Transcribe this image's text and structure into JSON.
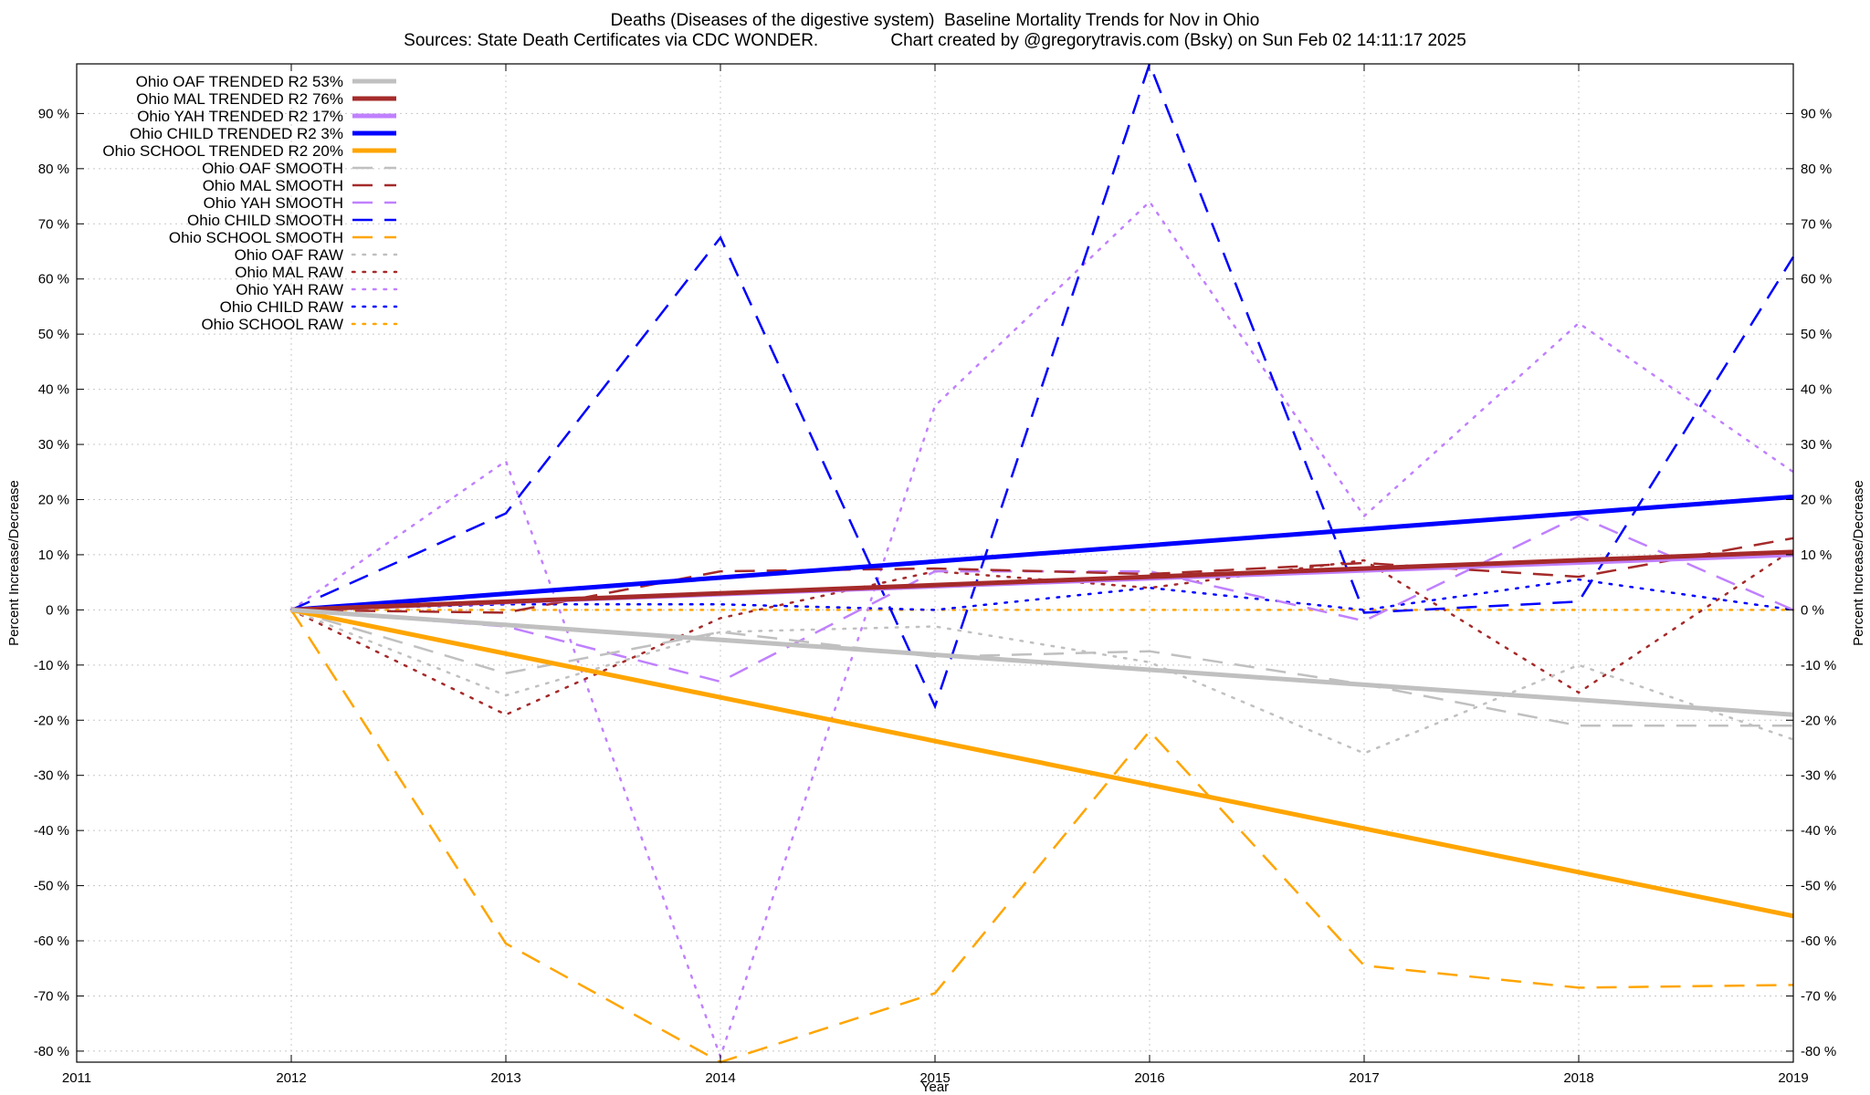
{
  "title": "Deaths (Diseases of the digestive system)  Baseline Mortality Trends for Nov in Ohio",
  "subtitle": "Sources: State Death Certificates via CDC WONDER.               Chart created by @gregorytravis.com (Bsky) on Sun Feb 02 14:11:17 2025",
  "chart_data": {
    "type": "line",
    "title": "Deaths (Diseases of the digestive system)  Baseline Mortality Trends for Nov in Ohio",
    "xlabel": "Year",
    "ylabel": "Percent Increase/Decrease",
    "y2label": "Percent Increase/Decrease",
    "xlim": [
      2011,
      2019
    ],
    "ylim": [
      -82,
      99
    ],
    "x_ticks": [
      2011,
      2012,
      2013,
      2014,
      2015,
      2016,
      2017,
      2018,
      2019
    ],
    "y_ticks": [
      -80,
      -70,
      -60,
      -50,
      -40,
      -30,
      -20,
      -10,
      0,
      10,
      20,
      30,
      40,
      50,
      60,
      70,
      80,
      90
    ],
    "y_tick_suffix": " %",
    "grid": true,
    "legend_position": "top-left",
    "series": [
      {
        "name": "Ohio OAF TRENDED R2  53%",
        "color": "#c0c0c0",
        "style": "solid",
        "width": 5,
        "x": [
          2012,
          2019
        ],
        "y": [
          0,
          -19
        ]
      },
      {
        "name": "Ohio MAL TRENDED R2  76%",
        "color": "#a52a2a",
        "style": "solid",
        "width": 5,
        "x": [
          2012,
          2019
        ],
        "y": [
          0,
          10.5
        ]
      },
      {
        "name": "Ohio YAH TRENDED R2  17%",
        "color": "#c080ff",
        "style": "solid",
        "width": 5,
        "x": [
          2012,
          2019
        ],
        "y": [
          0,
          10
        ]
      },
      {
        "name": "Ohio CHILD TRENDED R2   3%",
        "color": "#0000ff",
        "style": "solid",
        "width": 5,
        "x": [
          2012,
          2019
        ],
        "y": [
          0,
          20.5
        ]
      },
      {
        "name": "Ohio SCHOOL TRENDED R2  20%",
        "color": "#ffa500",
        "style": "solid",
        "width": 5,
        "x": [
          2012,
          2019
        ],
        "y": [
          0,
          -55.5
        ]
      },
      {
        "name": "Ohio OAF SMOOTH",
        "color": "#c0c0c0",
        "style": "dashed",
        "width": 2.5,
        "x": [
          2012,
          2013,
          2014,
          2015,
          2016,
          2017,
          2018,
          2019
        ],
        "y": [
          0,
          -11.5,
          -4,
          -8.5,
          -7.5,
          -13.5,
          -21,
          -21
        ]
      },
      {
        "name": "Ohio MAL SMOOTH",
        "color": "#a52a2a",
        "style": "dashed",
        "width": 2.5,
        "x": [
          2012,
          2013,
          2014,
          2015,
          2016,
          2017,
          2018,
          2019
        ],
        "y": [
          0,
          -0.5,
          7,
          7.5,
          6.5,
          8.5,
          6,
          13
        ]
      },
      {
        "name": "Ohio YAH SMOOTH",
        "color": "#c080ff",
        "style": "dashed",
        "width": 2.5,
        "x": [
          2012,
          2013,
          2014,
          2015,
          2016,
          2017,
          2018,
          2019
        ],
        "y": [
          0,
          -3,
          -13,
          7,
          7,
          -2,
          17,
          0
        ]
      },
      {
        "name": "Ohio CHILD SMOOTH",
        "color": "#0000ff",
        "style": "dashed",
        "width": 2.5,
        "x": [
          2012,
          2013,
          2014,
          2015,
          2016,
          2017,
          2018,
          2019
        ],
        "y": [
          0,
          17.5,
          67.5,
          -17.5,
          99,
          -0.5,
          1.5,
          64
        ]
      },
      {
        "name": "Ohio SCHOOL SMOOTH",
        "color": "#ffa500",
        "style": "dashed",
        "width": 2.5,
        "x": [
          2012,
          2013,
          2014,
          2015,
          2016,
          2017,
          2018,
          2019
        ],
        "y": [
          0,
          -60.5,
          -82,
          -69.5,
          -22,
          -64.5,
          -68.5,
          -68
        ]
      },
      {
        "name": "Ohio OAF RAW",
        "color": "#c0c0c0",
        "style": "dotted",
        "width": 2.5,
        "x": [
          2012,
          2013,
          2014,
          2015,
          2016,
          2017,
          2018,
          2019
        ],
        "y": [
          0,
          -15.5,
          -4,
          -3,
          -9.5,
          -26,
          -10,
          -23.5
        ]
      },
      {
        "name": "Ohio MAL RAW",
        "color": "#a52a2a",
        "style": "dotted",
        "width": 2.5,
        "x": [
          2012,
          2013,
          2014,
          2015,
          2016,
          2017,
          2018,
          2019
        ],
        "y": [
          0,
          -19,
          -1.5,
          7,
          4,
          9,
          -15,
          11
        ]
      },
      {
        "name": "Ohio YAH RAW",
        "color": "#c080ff",
        "style": "dotted",
        "width": 2.5,
        "x": [
          2012,
          2013,
          2014,
          2015,
          2016,
          2017,
          2018,
          2019
        ],
        "y": [
          0,
          27,
          -81,
          37,
          74,
          17,
          52,
          25
        ]
      },
      {
        "name": "Ohio CHILD RAW",
        "color": "#0000ff",
        "style": "dotted",
        "width": 2.5,
        "x": [
          2012,
          2013,
          2014,
          2015,
          2016,
          2017,
          2018,
          2019
        ],
        "y": [
          0,
          1,
          1,
          0,
          4,
          0,
          5.5,
          0
        ]
      },
      {
        "name": "Ohio SCHOOL RAW",
        "color": "#ffa500",
        "style": "dotted",
        "width": 2.5,
        "x": [
          2012,
          2013,
          2014,
          2015,
          2016,
          2017,
          2018,
          2019
        ],
        "y": [
          0,
          0,
          0,
          0,
          0,
          0,
          0,
          0
        ]
      }
    ]
  }
}
